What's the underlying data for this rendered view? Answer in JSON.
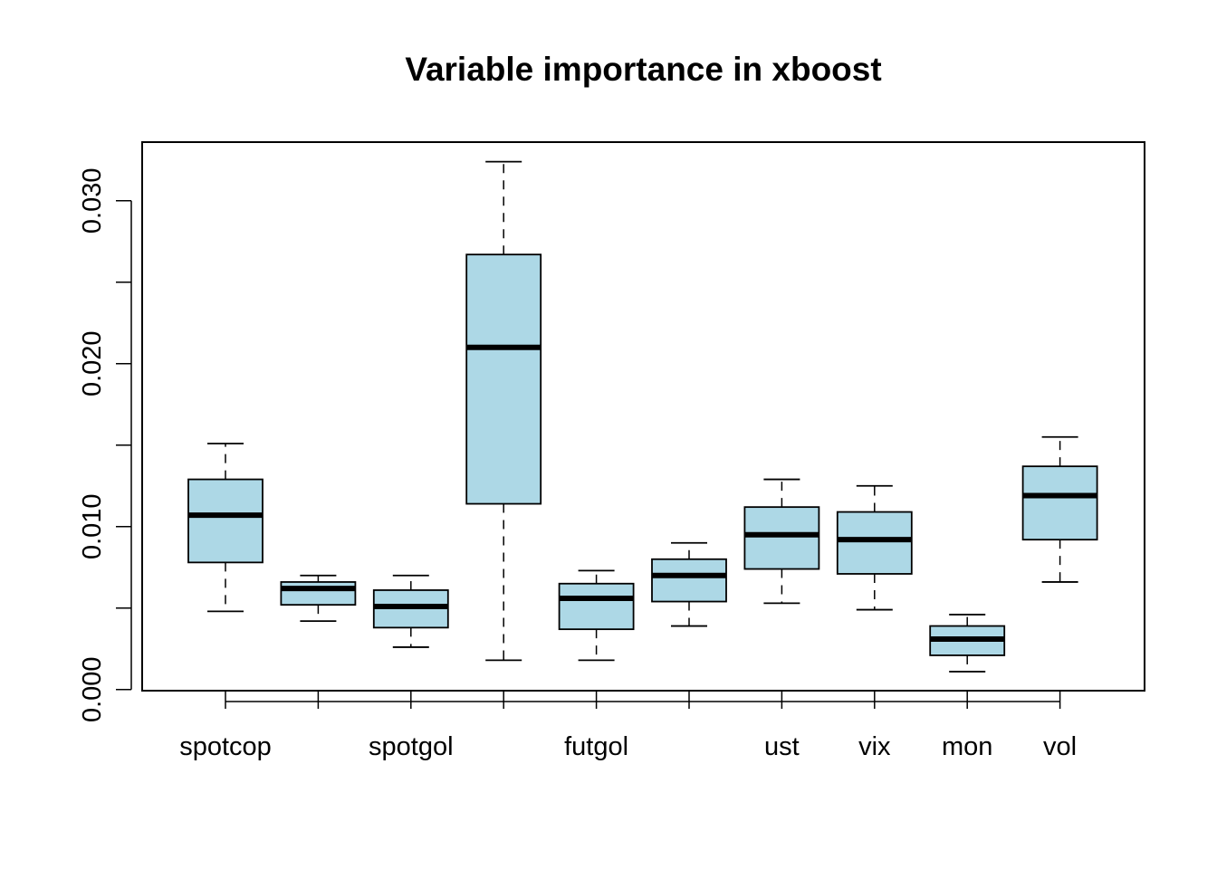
{
  "chart_data": {
    "type": "box",
    "title": "Variable importance in xboost",
    "xlabel": "",
    "ylabel": "",
    "ylim": [
      -7e-05,
      0.0336
    ],
    "yticks": [
      0.0,
      0.005,
      0.01,
      0.015,
      0.02,
      0.025,
      0.03
    ],
    "ytick_labels": [
      "0.000",
      "",
      "0.010",
      "",
      "0.020",
      "",
      "0.030"
    ],
    "categories": [
      "spotcop",
      "",
      "spotgol",
      "",
      "futgol",
      "",
      "ust",
      "vix",
      "mon",
      "vol"
    ],
    "boxes": [
      {
        "min": 0.0048,
        "q1": 0.0078,
        "median": 0.0107,
        "q3": 0.0129,
        "max": 0.0151
      },
      {
        "min": 0.0042,
        "q1": 0.0052,
        "median": 0.0062,
        "q3": 0.0066,
        "max": 0.007
      },
      {
        "min": 0.0026,
        "q1": 0.0038,
        "median": 0.0051,
        "q3": 0.0061,
        "max": 0.007
      },
      {
        "min": 0.0018,
        "q1": 0.0114,
        "median": 0.021,
        "q3": 0.0267,
        "max": 0.0324
      },
      {
        "min": 0.0018,
        "q1": 0.0037,
        "median": 0.0056,
        "q3": 0.0065,
        "max": 0.0073
      },
      {
        "min": 0.0039,
        "q1": 0.0054,
        "median": 0.007,
        "q3": 0.008,
        "max": 0.009
      },
      {
        "min": 0.0053,
        "q1": 0.0074,
        "median": 0.0095,
        "q3": 0.0112,
        "max": 0.0129
      },
      {
        "min": 0.0049,
        "q1": 0.0071,
        "median": 0.0092,
        "q3": 0.0109,
        "max": 0.0125
      },
      {
        "min": 0.0011,
        "q1": 0.0021,
        "median": 0.0031,
        "q3": 0.0039,
        "max": 0.0046
      },
      {
        "min": 0.0066,
        "q1": 0.0092,
        "median": 0.0119,
        "q3": 0.0137,
        "max": 0.0155
      }
    ],
    "box_color": "#add8e6",
    "line_color": "#000000",
    "grid": false,
    "legend": "none"
  }
}
